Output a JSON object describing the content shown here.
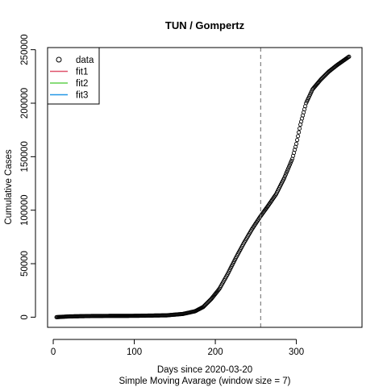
{
  "chart_data": {
    "type": "scatter",
    "title": "TUN / Gompertz",
    "xlabel": "Days since 2020-03-20",
    "xlabel_sub": "Simple Moving Avarage (window size = 7)",
    "ylabel": "Cumulative Cases",
    "xlim": [
      -7,
      381
    ],
    "ylim": [
      -9500,
      252000
    ],
    "xticks": [
      0,
      100,
      200,
      300
    ],
    "xtick_labels": [
      "0",
      "100",
      "200",
      "300"
    ],
    "yticks": [
      0,
      50000,
      100000,
      150000,
      200000,
      250000
    ],
    "ytick_labels": [
      "0",
      "50000",
      "100000",
      "150000",
      "200000",
      "250000"
    ],
    "vline": {
      "x": 256,
      "style": "dashed",
      "color": "#808080"
    },
    "legend": {
      "placement": "top-left",
      "entries": [
        {
          "label": "data",
          "symbol": "circle",
          "color": "#000000"
        },
        {
          "label": "fit1",
          "symbol": "line",
          "color": "#DF536B"
        },
        {
          "label": "fit2",
          "symbol": "line",
          "color": "#61D04F"
        },
        {
          "label": "fit3",
          "symbol": "line",
          "color": "#2297E6"
        }
      ]
    },
    "series": [
      {
        "name": "data",
        "marker": "circle",
        "color": "#000000",
        "x_start": 4,
        "x_end": 365,
        "anchors": [
          [
            4,
            0
          ],
          [
            20,
            700
          ],
          [
            50,
            1100
          ],
          [
            100,
            1250
          ],
          [
            140,
            1700
          ],
          [
            160,
            3000
          ],
          [
            175,
            5500
          ],
          [
            185,
            9500
          ],
          [
            195,
            17000
          ],
          [
            205,
            26500
          ],
          [
            215,
            40000
          ],
          [
            225,
            55000
          ],
          [
            235,
            69000
          ],
          [
            245,
            82000
          ],
          [
            255,
            93500
          ],
          [
            265,
            104000
          ],
          [
            275,
            115000
          ],
          [
            285,
            130000
          ],
          [
            295,
            148000
          ],
          [
            300,
            162000
          ],
          [
            305,
            180000
          ],
          [
            312,
            200000
          ],
          [
            320,
            213000
          ],
          [
            330,
            222000
          ],
          [
            340,
            229500
          ],
          [
            350,
            235500
          ],
          [
            365,
            243500
          ]
        ]
      }
    ]
  }
}
